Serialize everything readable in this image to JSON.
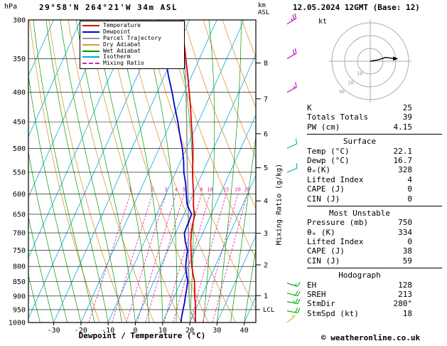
{
  "header": {
    "station": "29°58'N 264°21'W 34m ASL",
    "datetime": "12.05.2024 12GMT (Base: 12)",
    "pressure_unit": "hPa",
    "altitude_unit": "km\nASL",
    "copyright": "© weatheronline.co.uk"
  },
  "axes": {
    "x_title": "Dewpoint / Temperature (°C)",
    "mixing_ratio_title": "Mixing Ratio (g/kg)",
    "lcl_label": "LCL",
    "hodograph_unit": "kt"
  },
  "legend": [
    {
      "label": "Temperature",
      "color": "#dd0000"
    },
    {
      "label": "Dewpoint",
      "color": "#0000cc"
    },
    {
      "label": "Parcel Trajectory",
      "color": "#999999"
    },
    {
      "label": "Dry Adiabat",
      "color": "#dd9933"
    },
    {
      "label": "Wet Adiabat",
      "color": "#009900"
    },
    {
      "label": "Isotherm",
      "color": "#00aadd"
    },
    {
      "label": "Mixing Ratio",
      "color": "#dd22aa",
      "dashed": true
    }
  ],
  "stats": {
    "top_rows": [
      {
        "label": "K",
        "value": "25"
      },
      {
        "label": "Totals Totals",
        "value": "39"
      },
      {
        "label": "PW (cm)",
        "value": "4.15"
      }
    ],
    "sections": [
      {
        "title": "Surface",
        "rows": [
          {
            "label": "Temp (°C)",
            "value": "22.1"
          },
          {
            "label": "Dewp (°C)",
            "value": "16.7"
          },
          {
            "label": "θₑ(K)",
            "value": "328"
          },
          {
            "label": "Lifted Index",
            "value": "4"
          },
          {
            "label": "CAPE (J)",
            "value": "0"
          },
          {
            "label": "CIN (J)",
            "value": "0"
          }
        ]
      },
      {
        "title": "Most Unstable",
        "rows": [
          {
            "label": "Pressure (mb)",
            "value": "750"
          },
          {
            "label": "θₑ (K)",
            "value": "334"
          },
          {
            "label": "Lifted Index",
            "value": "0"
          },
          {
            "label": "CAPE (J)",
            "value": "38"
          },
          {
            "label": "CIN (J)",
            "value": "59"
          }
        ]
      },
      {
        "title": "Hodograph",
        "rows": [
          {
            "label": "EH",
            "value": "128"
          },
          {
            "label": "SREH",
            "value": "213"
          },
          {
            "label": "StmDir",
            "value": "280°"
          },
          {
            "label": "StmSpd (kt)",
            "value": "18"
          }
        ]
      }
    ]
  },
  "chart_data": {
    "type": "skewt_logp_sounding",
    "pressure_axis": {
      "unit": "hPa",
      "scale": "log",
      "range": [
        300,
        1000
      ],
      "ticks": [
        300,
        350,
        400,
        450,
        500,
        550,
        600,
        650,
        700,
        750,
        800,
        850,
        900,
        950,
        1000
      ]
    },
    "temp_axis": {
      "unit": "°C",
      "skewed": true,
      "ticks": [
        -30,
        -20,
        -10,
        0,
        10,
        20,
        30,
        40
      ]
    },
    "km_axis": {
      "unit": "km ASL",
      "ticks": [
        8,
        7,
        6,
        5,
        4,
        3,
        2,
        1
      ]
    },
    "mixing_ratio_ticks": [
      1,
      2,
      3,
      4,
      5,
      8,
      10,
      15,
      20,
      25
    ],
    "lcl_pressure": 950,
    "temperature_profile": [
      [
        1000,
        22.1
      ],
      [
        975,
        21.0
      ],
      [
        950,
        20.0
      ],
      [
        925,
        18.8
      ],
      [
        900,
        17.4
      ],
      [
        875,
        16.2
      ],
      [
        850,
        15.0
      ],
      [
        825,
        13.2
      ],
      [
        800,
        11.5
      ],
      [
        775,
        10.0
      ],
      [
        750,
        8.5
      ],
      [
        725,
        7.0
      ],
      [
        700,
        5.8
      ],
      [
        675,
        4.8
      ],
      [
        650,
        4.0
      ],
      [
        640,
        3.0
      ],
      [
        625,
        1.8
      ],
      [
        600,
        0.2
      ],
      [
        575,
        -1.8
      ],
      [
        550,
        -3.8
      ],
      [
        525,
        -5.6
      ],
      [
        500,
        -7.6
      ],
      [
        475,
        -10.0
      ],
      [
        450,
        -12.6
      ],
      [
        425,
        -15.2
      ],
      [
        400,
        -18.2
      ],
      [
        375,
        -21.4
      ],
      [
        350,
        -25.0
      ],
      [
        325,
        -28.8
      ],
      [
        300,
        -33.0
      ]
    ],
    "dewpoint_profile": [
      [
        1000,
        16.7
      ],
      [
        975,
        16.0
      ],
      [
        950,
        15.4
      ],
      [
        925,
        14.8
      ],
      [
        900,
        14.0
      ],
      [
        875,
        13.3
      ],
      [
        850,
        12.5
      ],
      [
        825,
        10.8
      ],
      [
        800,
        9.2
      ],
      [
        775,
        8.2
      ],
      [
        750,
        7.2
      ],
      [
        725,
        5.0
      ],
      [
        700,
        3.2
      ],
      [
        675,
        3.0
      ],
      [
        650,
        2.8
      ],
      [
        640,
        1.5
      ],
      [
        625,
        -0.5
      ],
      [
        600,
        -2.5
      ],
      [
        575,
        -4.5
      ],
      [
        550,
        -7.0
      ],
      [
        525,
        -9.0
      ],
      [
        500,
        -11.5
      ],
      [
        475,
        -14.5
      ],
      [
        450,
        -17.5
      ],
      [
        425,
        -21.0
      ],
      [
        400,
        -24.5
      ],
      [
        375,
        -28.5
      ],
      [
        350,
        -32.5
      ],
      [
        325,
        -37.0
      ],
      [
        300,
        -41.5
      ]
    ],
    "parcel_profile": [
      [
        1000,
        22.1
      ],
      [
        950,
        17.9
      ],
      [
        900,
        15.4
      ],
      [
        850,
        12.9
      ],
      [
        800,
        10.3
      ],
      [
        750,
        7.6
      ],
      [
        700,
        4.7
      ],
      [
        650,
        1.6
      ],
      [
        600,
        -1.9
      ],
      [
        550,
        -5.7
      ],
      [
        500,
        -9.8
      ],
      [
        450,
        -14.3
      ],
      [
        400,
        -19.4
      ],
      [
        350,
        -25.4
      ],
      [
        300,
        -32.6
      ]
    ],
    "wind_barbs": [
      {
        "p": 305,
        "speed": 25,
        "angle": 32,
        "color": "#bb00bb"
      },
      {
        "p": 350,
        "speed": 20,
        "angle": 30,
        "color": "#bb00bb"
      },
      {
        "p": 400,
        "speed": 15,
        "angle": 28,
        "color": "#bb00bb"
      },
      {
        "p": 500,
        "speed": 10,
        "angle": 25,
        "color": "#00aaaa"
      },
      {
        "p": 550,
        "speed": 10,
        "angle": 22,
        "color": "#00aaaa"
      },
      {
        "p": 855,
        "speed": 15,
        "angle": -18,
        "color": "#00aa00"
      },
      {
        "p": 890,
        "speed": 20,
        "angle": -15,
        "color": "#00aa00"
      },
      {
        "p": 920,
        "speed": 25,
        "angle": -12,
        "color": "#00aa00"
      },
      {
        "p": 955,
        "speed": 20,
        "angle": -10,
        "color": "#00aa00"
      },
      {
        "p": 1000,
        "speed": 5,
        "angle": 40,
        "color": "#ccbb00"
      }
    ],
    "hodograph": {
      "rings_kt": [
        10,
        20,
        30
      ],
      "trace_kt": [
        [
          0,
          0
        ],
        [
          6,
          1
        ],
        [
          12,
          3
        ],
        [
          19,
          2
        ]
      ]
    }
  }
}
